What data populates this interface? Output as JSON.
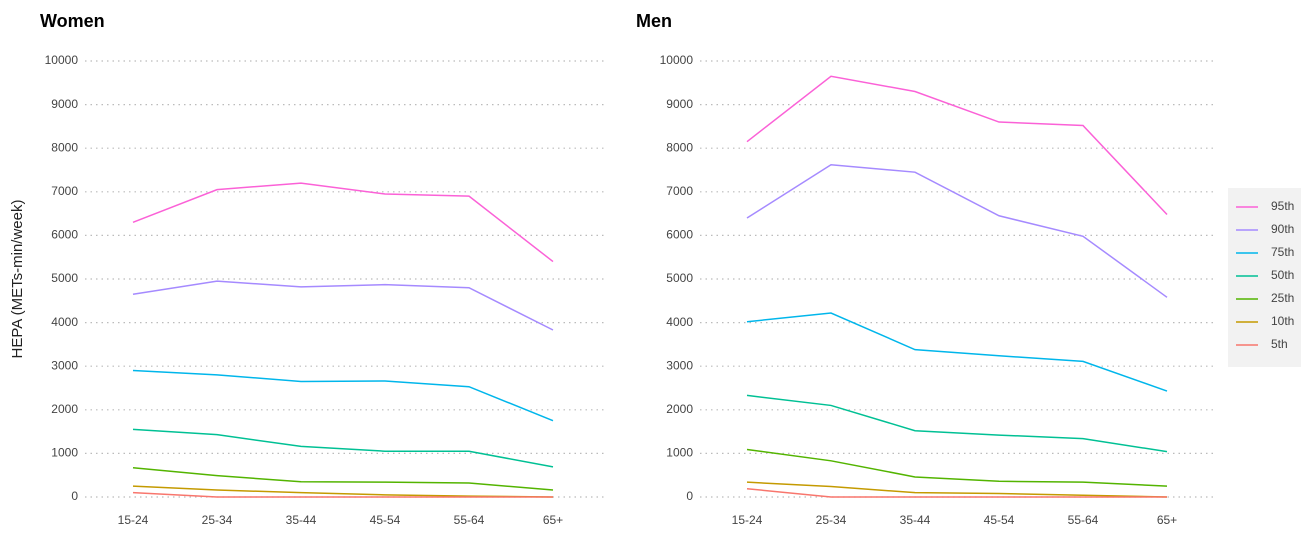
{
  "chart_data": [
    {
      "type": "line",
      "title": "Women",
      "y_label": "HEPA (METs-min/week)",
      "categories": [
        "15-24",
        "25-34",
        "35-44",
        "45-54",
        "55-64",
        "65+"
      ],
      "ylim": [
        0,
        10000
      ],
      "yticks": [
        0,
        1000,
        2000,
        3000,
        4000,
        5000,
        6000,
        7000,
        8000,
        9000,
        10000
      ],
      "grid": true,
      "series": [
        {
          "name": "95th",
          "color": "#FB61D7",
          "values": [
            6300,
            7050,
            7200,
            6950,
            6900,
            5400
          ]
        },
        {
          "name": "90th",
          "color": "#A58AFF",
          "values": [
            4650,
            4950,
            4820,
            4870,
            4800,
            3830
          ]
        },
        {
          "name": "75th",
          "color": "#00B6EB",
          "values": [
            2900,
            2800,
            2650,
            2660,
            2530,
            1750
          ]
        },
        {
          "name": "50th",
          "color": "#00C094",
          "values": [
            1550,
            1430,
            1160,
            1050,
            1050,
            690
          ]
        },
        {
          "name": "25th",
          "color": "#53B400",
          "values": [
            670,
            490,
            350,
            340,
            320,
            160
          ]
        },
        {
          "name": "10th",
          "color": "#C49A00",
          "values": [
            250,
            160,
            100,
            50,
            20,
            0
          ]
        },
        {
          "name": "5th",
          "color": "#F8766D",
          "values": [
            100,
            0,
            0,
            0,
            0,
            0
          ]
        }
      ]
    },
    {
      "type": "line",
      "title": "Men",
      "legend": "right",
      "categories": [
        "15-24",
        "25-34",
        "35-44",
        "45-54",
        "55-64",
        "65+"
      ],
      "ylim": [
        0,
        10000
      ],
      "yticks": [
        0,
        1000,
        2000,
        3000,
        4000,
        5000,
        6000,
        7000,
        8000,
        9000,
        10000
      ],
      "grid": true,
      "series": [
        {
          "name": "95th",
          "color": "#FB61D7",
          "values": [
            8150,
            9650,
            9300,
            8600,
            8520,
            6480
          ]
        },
        {
          "name": "90th",
          "color": "#A58AFF",
          "values": [
            6400,
            7620,
            7450,
            6450,
            5980,
            4580
          ]
        },
        {
          "name": "75th",
          "color": "#00B6EB",
          "values": [
            4020,
            4220,
            3380,
            3240,
            3110,
            2430
          ]
        },
        {
          "name": "50th",
          "color": "#00C094",
          "values": [
            2330,
            2100,
            1520,
            1420,
            1340,
            1040
          ]
        },
        {
          "name": "25th",
          "color": "#53B400",
          "values": [
            1090,
            830,
            460,
            360,
            340,
            250
          ]
        },
        {
          "name": "10th",
          "color": "#C49A00",
          "values": [
            340,
            240,
            100,
            80,
            40,
            0
          ]
        },
        {
          "name": "5th",
          "color": "#F8766D",
          "values": [
            190,
            0,
            0,
            0,
            0,
            0
          ]
        }
      ]
    }
  ]
}
